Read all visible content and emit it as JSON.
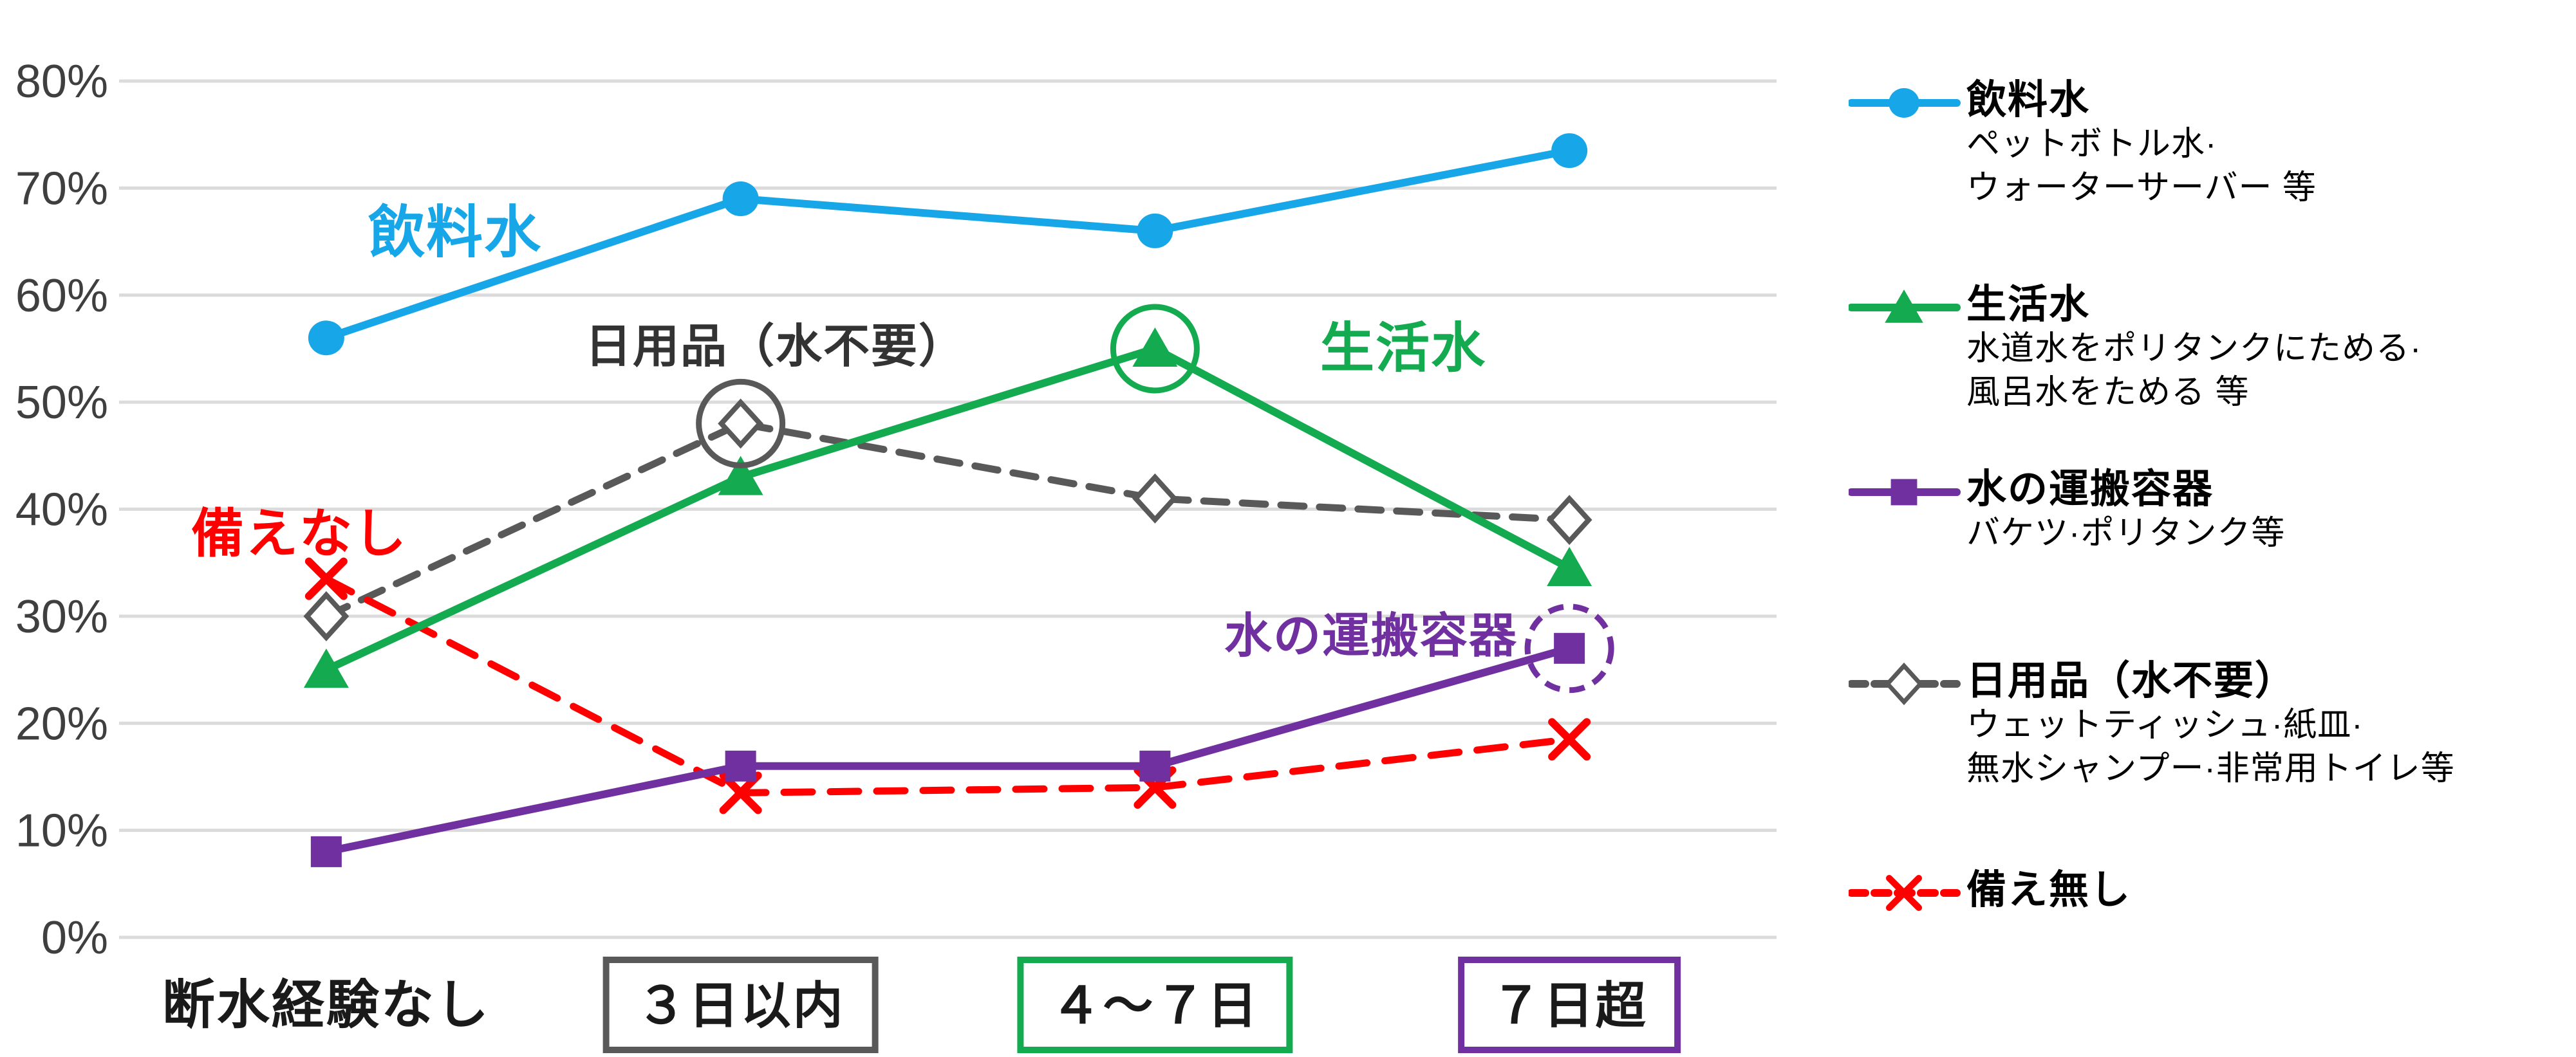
{
  "chart_data": {
    "type": "line",
    "title": "",
    "categories": [
      {
        "label": "断水経験なし",
        "box_color": null
      },
      {
        "label": "３日以内",
        "box_color": "#595959"
      },
      {
        "label": "４～７日",
        "box_color": "#14AB50"
      },
      {
        "label": "７日超",
        "box_color": "#7030A0"
      }
    ],
    "y_axis": {
      "min": 0,
      "max": 80,
      "step": 10,
      "suffix": "%"
    },
    "grid": true,
    "legend_position": "right",
    "series": [
      {
        "name": "日用品（水不要）",
        "color": "#595959",
        "marker": "diamond-open",
        "dashed": true,
        "values": [
          30,
          48,
          41,
          39
        ]
      },
      {
        "name": "備え無し",
        "color": "#FF0000",
        "marker": "x",
        "dashed": true,
        "values": [
          33.5,
          13.5,
          14,
          18.5
        ]
      },
      {
        "name": "水の運搬容器",
        "color": "#7030A0",
        "marker": "square",
        "dashed": false,
        "values": [
          8,
          16,
          16,
          27
        ]
      },
      {
        "name": "生活水",
        "color": "#14AB50",
        "marker": "triangle",
        "dashed": false,
        "values": [
          25,
          43,
          55,
          34.5
        ]
      },
      {
        "name": "飲料水",
        "color": "#17A7E8",
        "marker": "circle",
        "dashed": false,
        "values": [
          56,
          69,
          66,
          73.5
        ]
      }
    ],
    "annotations": [
      {
        "text": "飲料水",
        "color": "#17A7E8",
        "x": 707,
        "y": 360,
        "size": 88
      },
      {
        "text": "日用品（水不要）",
        "color": "#333333",
        "x": 1205,
        "y": 537,
        "size": 72
      },
      {
        "text": "生活水",
        "color": "#14AB50",
        "x": 2180,
        "y": 540,
        "size": 84
      },
      {
        "text": "備えなし",
        "color": "#FF0000",
        "x": 465,
        "y": 828,
        "size": 82
      },
      {
        "text": "水の運搬容器",
        "color": "#7030A0",
        "x": 2130,
        "y": 987,
        "size": 74
      }
    ],
    "rings": [
      {
        "category": 1,
        "value": 48,
        "color": "#595959",
        "dashed": false
      },
      {
        "category": 2,
        "value": 55,
        "color": "#14AB50",
        "dashed": false
      },
      {
        "category": 3,
        "value": 27,
        "color": "#7030A0",
        "dashed": true
      }
    ],
    "colors": {
      "gridline": "#DBDBDB",
      "tick_label": "#3F3F3F",
      "category_label": "#1A1A1A"
    }
  },
  "legend": {
    "items": [
      {
        "label": "飲料水",
        "desc1": "ペットボトル水·",
        "desc2": "ウォーターサーバー 等",
        "marker": "circle",
        "color": "#17A7E8",
        "dashed": false
      },
      {
        "label": "生活水",
        "desc1": "水道水をポリタンクにためる·",
        "desc2": "風呂水をためる 等",
        "marker": "triangle",
        "color": "#14AB50",
        "dashed": false
      },
      {
        "label": "水の運搬容器",
        "desc1": "バケツ·ポリタンク等",
        "desc2": "",
        "marker": "square",
        "color": "#7030A0",
        "dashed": false
      },
      {
        "label": "日用品（水不要）",
        "desc1": "ウェットティッシュ·紙皿·",
        "desc2": "無水シャンプー·非常用トイレ等",
        "marker": "diamond-open",
        "color": "#595959",
        "dashed": true
      },
      {
        "label": "備え無し",
        "desc1": "",
        "desc2": "",
        "marker": "x",
        "color": "#FF0000",
        "dashed": true
      }
    ]
  }
}
